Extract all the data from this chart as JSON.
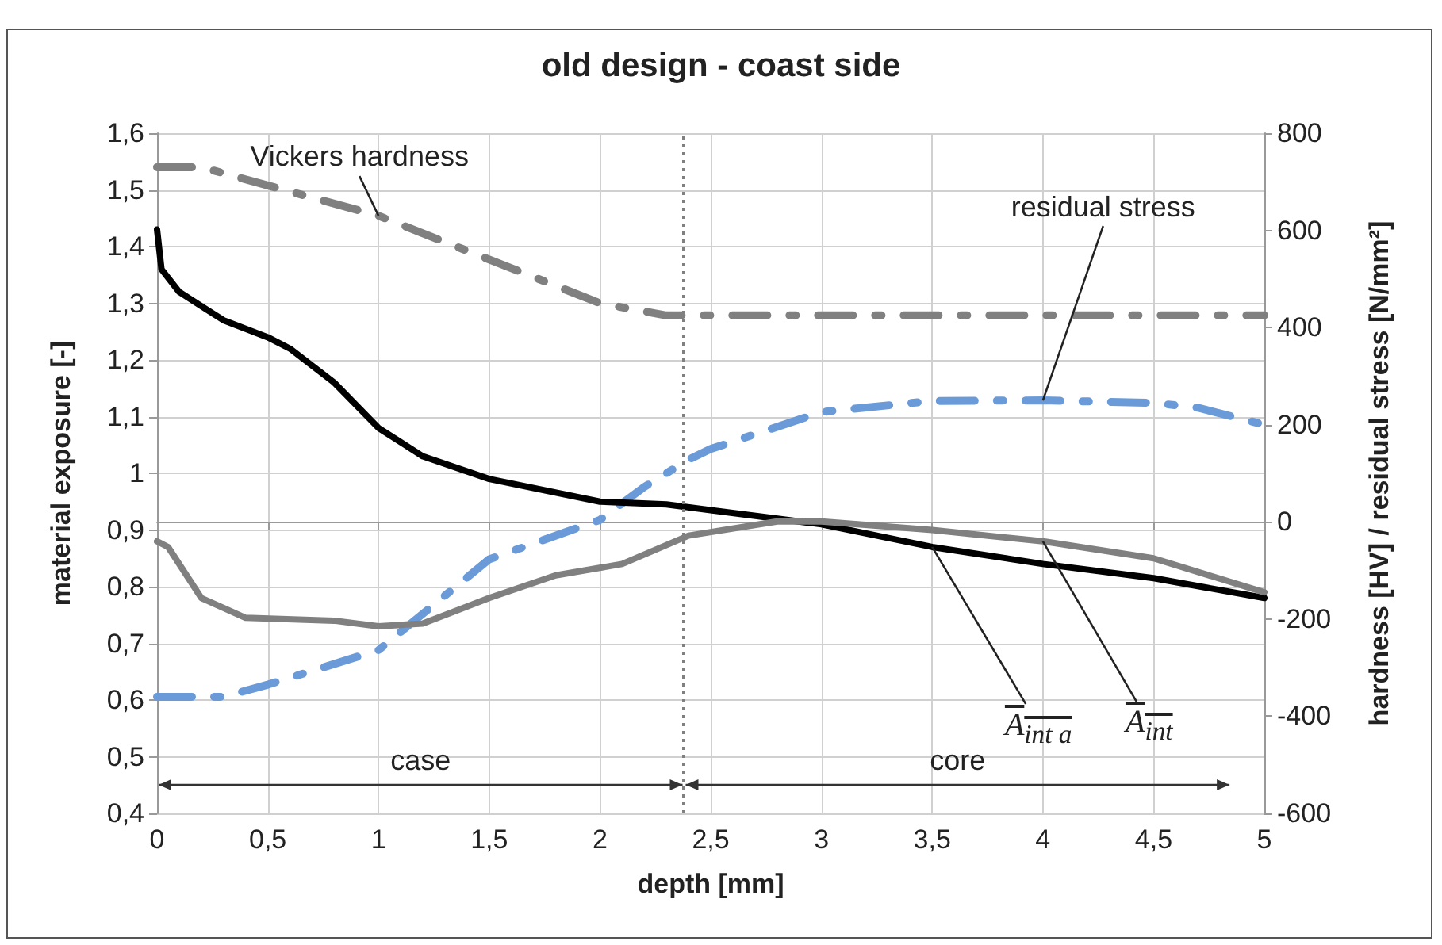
{
  "chart_data": {
    "type": "line",
    "title": "old design - coast side",
    "xlabel": "depth [mm]",
    "ylabel": "material exposure [-]",
    "y2label": "hardness [HV] / residual stress [N/mm²]",
    "xlim": [
      0,
      5
    ],
    "xticks": [
      0,
      {
        "value": 0.5,
        "label": "0,5"
      },
      1,
      {
        "value": 1.5,
        "label": "1,5"
      },
      2,
      {
        "value": 2.5,
        "label": "2,5"
      },
      3,
      {
        "value": 3.5,
        "label": "3,5"
      },
      4,
      {
        "value": 4.5,
        "label": "4,5"
      },
      5
    ],
    "ylim": [
      0.4,
      1.6
    ],
    "yticks": [
      {
        "value": 0.4,
        "label": "0,4"
      },
      {
        "value": 0.5,
        "label": "0,5"
      },
      {
        "value": 0.6,
        "label": "0,6"
      },
      {
        "value": 0.7,
        "label": "0,7"
      },
      {
        "value": 0.8,
        "label": "0,8"
      },
      {
        "value": 0.9,
        "label": "0,9"
      },
      1,
      {
        "value": 1.1,
        "label": "1,1"
      },
      {
        "value": 1.2,
        "label": "1,2"
      },
      {
        "value": 1.3,
        "label": "1,3"
      },
      {
        "value": 1.4,
        "label": "1,4"
      },
      {
        "value": 1.5,
        "label": "1,5"
      },
      {
        "value": 1.6,
        "label": "1,6"
      }
    ],
    "y2lim": [
      -600,
      800
    ],
    "y2ticks": [
      -600,
      -400,
      -200,
      0,
      200,
      400,
      600,
      800
    ],
    "grid": true,
    "legend": false,
    "marker": "none",
    "series": [
      {
        "name": "A$_{int a}$",
        "color": "#000000",
        "line_style": "solid",
        "x": [
          0,
          0.02,
          0.1,
          0.3,
          0.5,
          0.6,
          0.8,
          1,
          1.2,
          1.5,
          2,
          2.3,
          2.5,
          3,
          3.5,
          4,
          4.5,
          5
        ],
        "values": [
          1.43,
          1.36,
          1.32,
          1.27,
          1.24,
          1.22,
          1.16,
          1.08,
          1.03,
          0.99,
          0.95,
          0.945,
          0.935,
          0.91,
          0.87,
          0.84,
          0.815,
          0.78
        ]
      },
      {
        "name": "A$_{int}$",
        "color": "#808080",
        "line_style": "solid",
        "x": [
          0,
          0.05,
          0.2,
          0.4,
          0.8,
          1,
          1.2,
          1.5,
          1.8,
          2.1,
          2.4,
          2.8,
          3,
          3.5,
          4,
          4.5,
          5
        ],
        "values": [
          0.88,
          0.87,
          0.78,
          0.745,
          0.74,
          0.73,
          0.735,
          0.78,
          0.82,
          0.84,
          0.89,
          0.915,
          0.915,
          0.9,
          0.88,
          0.85,
          0.79
        ]
      },
      {
        "name": "Vickers hardness",
        "color": "#808080",
        "line_style": "dashed",
        "axis": "y2",
        "x": [
          0,
          0.2,
          1,
          1.5,
          2,
          2.3,
          5
        ],
        "values": [
          730,
          730,
          630,
          540,
          450,
          425,
          425
        ]
      },
      {
        "name": "residual stress",
        "color": "#6a9bd8",
        "line_style": "dashed",
        "axis": "y2",
        "x": [
          0,
          0.3,
          0.5,
          1,
          1.5,
          2,
          2.2,
          2.4,
          2.5,
          3,
          3.5,
          4,
          4.5,
          4.7,
          5
        ],
        "values": [
          -360,
          -360,
          -335,
          -264,
          -77,
          4,
          72,
          128,
          150,
          226,
          249,
          250,
          245,
          235,
          200
        ]
      }
    ],
    "ref_lines": [
      {
        "axis": "x",
        "value": 2.38,
        "line_style": "dotted",
        "color": "#808080"
      }
    ],
    "annotations": [
      "case",
      "core"
    ]
  }
}
